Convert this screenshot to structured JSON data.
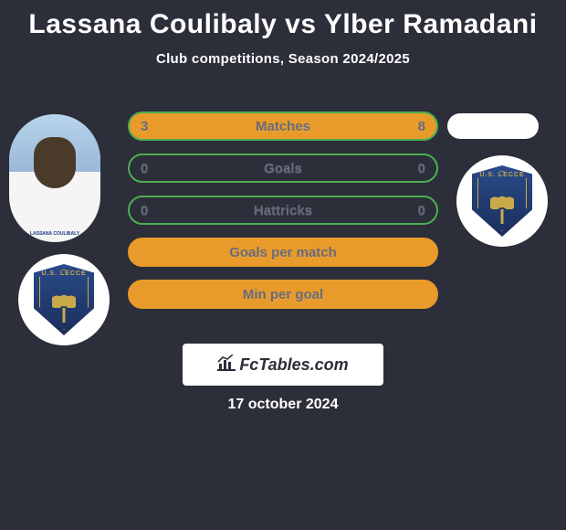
{
  "title": "Lassana Coulibaly vs Ylber Ramadani",
  "subtitle": "Club competitions, Season 2024/2025",
  "date": "17 october 2024",
  "logo": {
    "text": "FcTables.com"
  },
  "background_color": "#2c2e3a",
  "club_label": "U.S. LECCE",
  "theme": {
    "bar_border_green": "#4caf50",
    "bar_fill_green": "#e89a2a",
    "bar_border_orange": "#e89a2a",
    "bar_fill_orange": "#e89a2a",
    "label_color": "#676a7a"
  },
  "bars": [
    {
      "label": "Matches",
      "left": "3",
      "right": "8",
      "fill": "#e89a2a",
      "border": "#4caf50"
    },
    {
      "label": "Goals",
      "left": "0",
      "right": "0",
      "fill": "transparent",
      "border": "#4caf50"
    },
    {
      "label": "Hattricks",
      "left": "0",
      "right": "0",
      "fill": "transparent",
      "border": "#4caf50"
    },
    {
      "label": "Goals per match",
      "left": "",
      "right": "",
      "fill": "#e89a2a",
      "border": "#e89a2a"
    },
    {
      "label": "Min per goal",
      "left": "",
      "right": "",
      "fill": "#e89a2a",
      "border": "#e89a2a"
    }
  ]
}
